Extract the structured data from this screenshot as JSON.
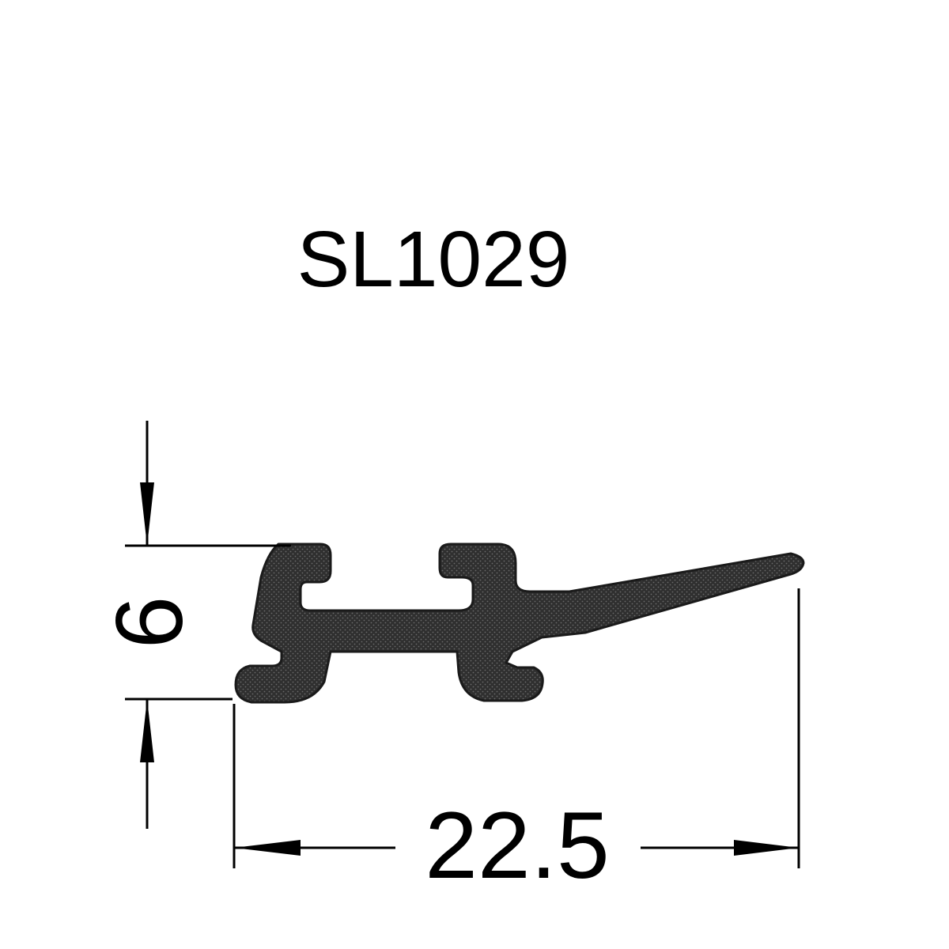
{
  "title": "SL1029",
  "dimensions": {
    "height": {
      "value": "6"
    },
    "width": {
      "value": "22.5"
    }
  },
  "colors": {
    "line": "#000000",
    "profile_fill": "#2b2b2b",
    "background": "#ffffff"
  }
}
